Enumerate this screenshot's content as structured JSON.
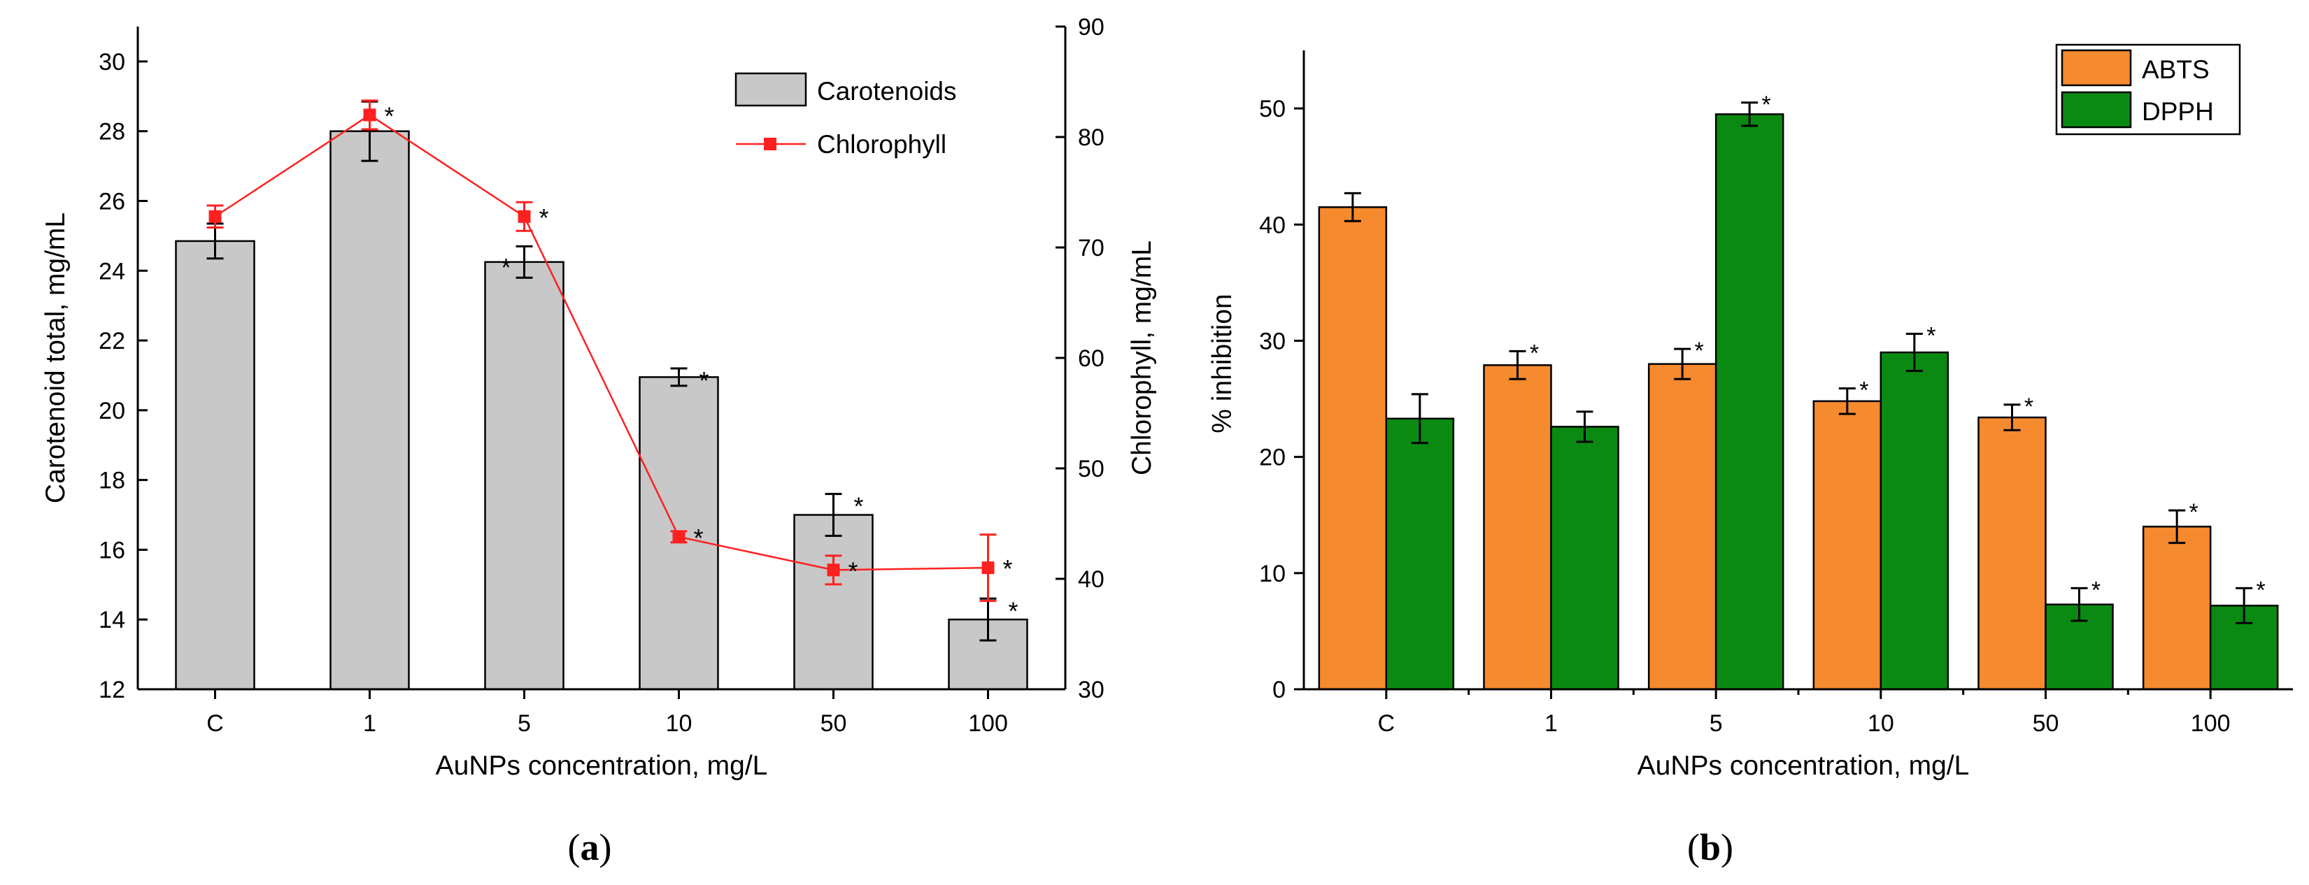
{
  "chart_data": [
    {
      "type": "bar",
      "panel_label": "(a)",
      "panel_label_parts": [
        "(",
        "a",
        ")"
      ],
      "title": "",
      "xlabel": "AuNPs concentration, mg/L",
      "ylabel": "Carotenoid total, mg/mL",
      "y2label": "Chlorophyll, mg/mL",
      "categories": [
        "C",
        "1",
        "5",
        "10",
        "50",
        "100"
      ],
      "ylim": [
        12,
        31
      ],
      "yticks": [
        12,
        14,
        16,
        18,
        20,
        22,
        24,
        26,
        28,
        30
      ],
      "y2lim": [
        30,
        90
      ],
      "y2ticks": [
        30,
        40,
        50,
        60,
        70,
        80,
        90
      ],
      "legend_position": "top-right",
      "series": [
        {
          "name": "Carotenoids",
          "kind": "bar",
          "axis": "left",
          "color": "#c8c8c8",
          "values": [
            24.85,
            28.0,
            24.25,
            20.95,
            17.0,
            14.0
          ],
          "errors": [
            0.5,
            0.85,
            0.45,
            0.25,
            0.6,
            0.6
          ],
          "significance": [
            "",
            "",
            "*",
            "*",
            "*",
            "*"
          ]
        },
        {
          "name": "Chlorophyll",
          "kind": "line",
          "axis": "right",
          "color": "#ff2020",
          "values": [
            72.8,
            82.0,
            72.8,
            43.8,
            40.8,
            41.0
          ],
          "errors": [
            1.0,
            1.3,
            1.3,
            0.5,
            1.3,
            3.0
          ],
          "significance": [
            "",
            "*",
            "*",
            "*",
            "*",
            "*"
          ]
        }
      ]
    },
    {
      "type": "bar",
      "panel_label": "(b)",
      "panel_label_parts": [
        "(",
        "b",
        ")"
      ],
      "title": "",
      "xlabel": "AuNPs concentration, mg/L",
      "ylabel": "% inhibition",
      "categories": [
        "C",
        "1",
        "5",
        "10",
        "50",
        "100"
      ],
      "ylim": [
        0,
        55
      ],
      "yticks": [
        0,
        10,
        20,
        30,
        40,
        50
      ],
      "legend_position": "top-right",
      "series": [
        {
          "name": "ABTS",
          "color": "#f58a2e",
          "values": [
            41.5,
            27.9,
            28.0,
            24.8,
            23.4,
            14.0
          ],
          "errors": [
            1.2,
            1.2,
            1.3,
            1.1,
            1.1,
            1.4
          ],
          "significance": [
            "",
            "*",
            "*",
            "*",
            "*",
            "*"
          ]
        },
        {
          "name": "DPPH",
          "color": "#0a8a12",
          "values": [
            23.3,
            22.6,
            49.5,
            29.0,
            7.3,
            7.2
          ],
          "errors": [
            2.1,
            1.3,
            1.0,
            1.6,
            1.4,
            1.5
          ],
          "significance": [
            "",
            "",
            "*",
            "*",
            "*",
            "*"
          ]
        }
      ]
    }
  ]
}
